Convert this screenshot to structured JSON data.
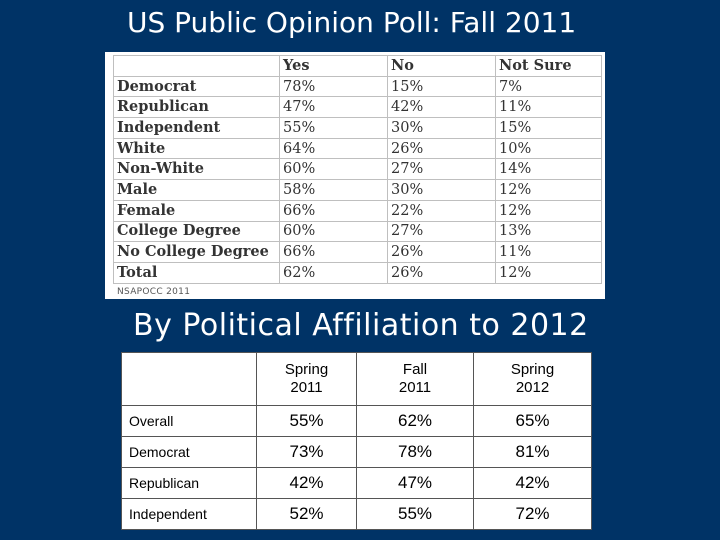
{
  "title_poll": "US Public Opinion Poll: Fall 2011",
  "title_affiliation": "By Political Affiliation to 2012",
  "poll": {
    "headers": [
      "",
      "Yes",
      "No",
      "Not Sure"
    ],
    "rows": [
      {
        "label": "Democrat",
        "yes": "78%",
        "no": "15%",
        "not_sure": "7%"
      },
      {
        "label": "Republican",
        "yes": "47%",
        "no": "42%",
        "not_sure": "11%"
      },
      {
        "label": "Independent",
        "yes": "55%",
        "no": "30%",
        "not_sure": "15%"
      },
      {
        "label": "White",
        "yes": "64%",
        "no": "26%",
        "not_sure": "10%"
      },
      {
        "label": "Non-White",
        "yes": "60%",
        "no": "27%",
        "not_sure": "14%"
      },
      {
        "label": "Male",
        "yes": "58%",
        "no": "30%",
        "not_sure": "12%"
      },
      {
        "label": "Female",
        "yes": "66%",
        "no": "22%",
        "not_sure": "12%"
      },
      {
        "label": "College Degree",
        "yes": "60%",
        "no": "27%",
        "not_sure": "13%"
      },
      {
        "label": "No College Degree",
        "yes": "66%",
        "no": "26%",
        "not_sure": "11%"
      },
      {
        "label": "Total",
        "yes": "62%",
        "no": "26%",
        "not_sure": "12%"
      }
    ],
    "source": "NSAPOCC 2011"
  },
  "affiliation": {
    "headers": [
      {
        "line1": "Spring",
        "line2": "2011"
      },
      {
        "line1": "Fall",
        "line2": "2011"
      },
      {
        "line1": "Spring",
        "line2": "2012"
      }
    ],
    "rows": [
      {
        "label": "Overall",
        "values": [
          "55%",
          "62%",
          "65%"
        ]
      },
      {
        "label": "Democrat",
        "values": [
          "73%",
          "78%",
          "81%"
        ]
      },
      {
        "label": "Republican",
        "values": [
          "42%",
          "47%",
          "42%"
        ]
      },
      {
        "label": "Independent",
        "values": [
          "52%",
          "55%",
          "72%"
        ]
      }
    ]
  },
  "colors": {
    "background": "#003366",
    "title_text": "#ffffff"
  }
}
